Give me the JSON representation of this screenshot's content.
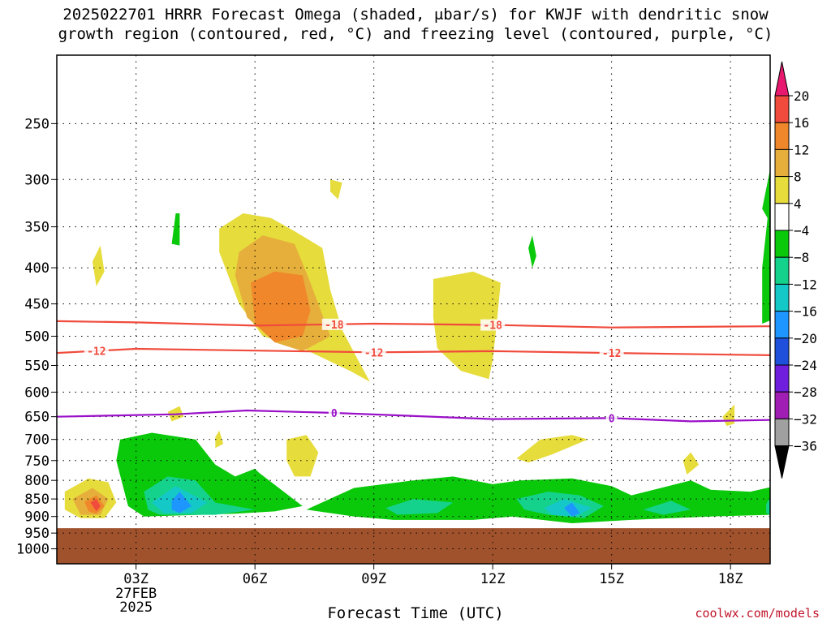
{
  "title_line1": "2025022701 HRRR Forecast Omega (shaded, μbar/s) for KWJF with dendritic snow",
  "title_line2": "growth region (contoured, red, °C) and freezing level (contoured, purple, °C)",
  "credit": "coolwx.com/models",
  "chart_data": {
    "type": "heatmap",
    "title": "2025022701 HRRR Forecast Omega (shaded, μbar/s) for KWJF with dendritic snow growth region (contoured, red, °C) and freezing level (contoured, purple, °C)",
    "xlabel": "Forecast Time (UTC)",
    "ylabel": "",
    "x_range_hours": [
      1,
      19
    ],
    "x_ticks": [
      {
        "hour": 3,
        "label": "03Z",
        "extra": [
          "27FEB",
          "2025"
        ]
      },
      {
        "hour": 6,
        "label": "06Z"
      },
      {
        "hour": 9,
        "label": "09Z"
      },
      {
        "hour": 12,
        "label": "12Z"
      },
      {
        "hour": 15,
        "label": "15Z"
      },
      {
        "hour": 18,
        "label": "18Z"
      }
    ],
    "y_ticks": [
      250,
      300,
      350,
      400,
      450,
      500,
      550,
      600,
      650,
      700,
      750,
      800,
      850,
      900,
      950,
      1000
    ],
    "y_range_hpa": [
      200,
      1050
    ],
    "ground_below_hpa": 935,
    "grid": true,
    "colorbar": {
      "levels": [
        20,
        16,
        12,
        8,
        4,
        -4,
        -8,
        -12,
        -16,
        -20,
        -24,
        -28,
        -32,
        -36
      ],
      "colors": [
        "#e8186e",
        "#f04b3c",
        "#f0872a",
        "#e6ae3a",
        "#e6dc3c",
        "#ffffff",
        "#0ac80a",
        "#14d28c",
        "#14c8c8",
        "#1e96ff",
        "#1e50dc",
        "#6e1edc",
        "#a01eb4",
        "#a0a0a0",
        "#000000"
      ]
    },
    "contours": [
      {
        "label": "-18",
        "color": "#f04b3c",
        "points": [
          [
            1,
            476
          ],
          [
            3,
            478
          ],
          [
            6,
            483
          ],
          [
            9,
            480
          ],
          [
            12,
            482
          ],
          [
            15,
            486
          ],
          [
            19,
            484
          ]
        ],
        "label_hours": [
          8,
          12
        ]
      },
      {
        "label": "-12",
        "color": "#f04b3c",
        "points": [
          [
            1,
            528
          ],
          [
            3,
            521
          ],
          [
            6,
            524
          ],
          [
            9,
            527
          ],
          [
            12,
            525
          ],
          [
            15,
            528
          ],
          [
            19,
            532
          ]
        ],
        "label_hours": [
          2,
          9,
          15
        ]
      },
      {
        "label": "0",
        "color": "#9a10c8",
        "points": [
          [
            1,
            650
          ],
          [
            4,
            645
          ],
          [
            5.8,
            637
          ],
          [
            8,
            642
          ],
          [
            12,
            655
          ],
          [
            15,
            653
          ],
          [
            17,
            660
          ],
          [
            19,
            657
          ]
        ],
        "label_hours": [
          8,
          15
        ]
      }
    ],
    "regions": [
      {
        "value": 6,
        "polygon": [
          [
            5.1,
            352
          ],
          [
            5.7,
            335
          ],
          [
            6.4,
            340
          ],
          [
            7,
            355
          ],
          [
            7.7,
            375
          ],
          [
            7.9,
            430
          ],
          [
            8.2,
            490
          ],
          [
            8.6,
            540
          ],
          [
            8.9,
            580
          ],
          [
            8.4,
            560
          ],
          [
            7.2,
            520
          ],
          [
            6.2,
            500
          ],
          [
            5.6,
            450
          ],
          [
            5.1,
            380
          ]
        ]
      },
      {
        "value": 10,
        "polygon": [
          [
            5.6,
            380
          ],
          [
            6.2,
            360
          ],
          [
            7,
            370
          ],
          [
            7.4,
            420
          ],
          [
            7.9,
            500
          ],
          [
            7.2,
            525
          ],
          [
            6.5,
            510
          ],
          [
            5.8,
            470
          ],
          [
            5.5,
            410
          ]
        ]
      },
      {
        "value": 14,
        "polygon": [
          [
            5.9,
            420
          ],
          [
            6.5,
            405
          ],
          [
            7.2,
            410
          ],
          [
            7.4,
            460
          ],
          [
            7.2,
            500
          ],
          [
            6.5,
            510
          ],
          [
            6,
            480
          ]
        ]
      },
      {
        "value": 6,
        "polygon": [
          [
            10.5,
            415
          ],
          [
            11.5,
            405
          ],
          [
            12.2,
            420
          ],
          [
            12.1,
            480
          ],
          [
            12,
            540
          ],
          [
            11.9,
            575
          ],
          [
            11.2,
            560
          ],
          [
            10.6,
            520
          ],
          [
            10.5,
            470
          ]
        ]
      },
      {
        "value": 6,
        "polygon": [
          [
            1.9,
            392
          ],
          [
            2.1,
            372
          ],
          [
            2.2,
            405
          ],
          [
            2.0,
            425
          ]
        ]
      },
      {
        "value": 6,
        "polygon": [
          [
            7.9,
            300
          ],
          [
            8.2,
            303
          ],
          [
            8.1,
            320
          ],
          [
            7.9,
            312
          ]
        ]
      },
      {
        "value": 6,
        "polygon": [
          [
            3.8,
            640
          ],
          [
            4.1,
            628
          ],
          [
            4.2,
            650
          ],
          [
            3.9,
            660
          ]
        ]
      },
      {
        "value": 6,
        "polygon": [
          [
            5.0,
            695
          ],
          [
            5.1,
            680
          ],
          [
            5.2,
            710
          ],
          [
            5.0,
            720
          ]
        ]
      },
      {
        "value": 6,
        "polygon": [
          [
            6.8,
            700
          ],
          [
            7.3,
            690
          ],
          [
            7.6,
            730
          ],
          [
            7.4,
            790
          ],
          [
            7.0,
            790
          ],
          [
            6.8,
            750
          ]
        ]
      },
      {
        "value": 6,
        "polygon": [
          [
            12.6,
            745
          ],
          [
            13.2,
            700
          ],
          [
            14.0,
            690
          ],
          [
            14.4,
            700
          ],
          [
            13.5,
            735
          ],
          [
            12.9,
            755
          ]
        ]
      },
      {
        "value": 6,
        "polygon": [
          [
            16.8,
            750
          ],
          [
            17.0,
            730
          ],
          [
            17.2,
            760
          ],
          [
            16.9,
            785
          ]
        ]
      },
      {
        "value": 6,
        "polygon": [
          [
            17.8,
            650
          ],
          [
            18.1,
            625
          ],
          [
            18.1,
            665
          ],
          [
            17.9,
            670
          ]
        ]
      },
      {
        "value": -6,
        "polygon": [
          [
            2.6,
            700
          ],
          [
            3.4,
            685
          ],
          [
            4.5,
            700
          ],
          [
            5,
            760
          ],
          [
            5.5,
            790
          ],
          [
            6.0,
            770
          ],
          [
            6.1,
            780
          ],
          [
            7.2,
            870
          ],
          [
            6.5,
            885
          ],
          [
            5.5,
            892
          ],
          [
            3.2,
            900
          ],
          [
            2.8,
            870
          ],
          [
            2.5,
            750
          ]
        ]
      },
      {
        "value": -6,
        "polygon": [
          [
            3.9,
            370
          ],
          [
            4.0,
            335
          ],
          [
            4.1,
            335
          ],
          [
            4.1,
            372
          ]
        ]
      },
      {
        "value": -6,
        "polygon": [
          [
            13.0,
            360
          ],
          [
            13.1,
            385
          ],
          [
            13.0,
            400
          ],
          [
            12.9,
            375
          ]
        ]
      },
      {
        "value": -6,
        "polygon": [
          [
            7.3,
            880
          ],
          [
            8.5,
            820
          ],
          [
            10,
            800
          ],
          [
            11,
            790
          ],
          [
            12,
            810
          ],
          [
            12.7,
            800
          ],
          [
            14,
            795
          ],
          [
            15,
            815
          ],
          [
            15.5,
            840
          ],
          [
            17,
            800
          ],
          [
            17.5,
            825
          ],
          [
            18.5,
            830
          ],
          [
            19,
            818
          ],
          [
            19,
            895
          ],
          [
            17.5,
            900
          ],
          [
            15.5,
            910
          ],
          [
            14,
            920
          ],
          [
            12.5,
            900
          ],
          [
            11.5,
            910
          ],
          [
            9.5,
            910
          ],
          [
            8.5,
            900
          ]
        ]
      },
      {
        "value": -6,
        "polygon": [
          [
            18.8,
            400
          ],
          [
            19,
            315
          ],
          [
            19,
            475
          ],
          [
            18.8,
            480
          ]
        ]
      },
      {
        "value": -6,
        "polygon": [
          [
            18.8,
            330
          ],
          [
            19,
            290
          ],
          [
            19,
            345
          ]
        ]
      },
      {
        "value": -10,
        "polygon": [
          [
            3.2,
            830
          ],
          [
            3.8,
            790
          ],
          [
            4.5,
            800
          ],
          [
            5,
            860
          ],
          [
            6.0,
            880
          ],
          [
            5,
            895
          ],
          [
            3.6,
            895
          ],
          [
            3.3,
            880
          ]
        ]
      },
      {
        "value": -10,
        "polygon": [
          [
            9.3,
            875
          ],
          [
            10,
            850
          ],
          [
            11,
            860
          ],
          [
            10.6,
            890
          ],
          [
            9.6,
            895
          ]
        ]
      },
      {
        "value": -10,
        "polygon": [
          [
            12.6,
            850
          ],
          [
            13.4,
            830
          ],
          [
            14.2,
            840
          ],
          [
            14.8,
            870
          ],
          [
            14.3,
            905
          ],
          [
            13.4,
            895
          ],
          [
            12.8,
            880
          ]
        ]
      },
      {
        "value": -10,
        "polygon": [
          [
            15.8,
            880
          ],
          [
            16.5,
            855
          ],
          [
            17,
            880
          ],
          [
            16.3,
            895
          ]
        ]
      },
      {
        "value": -10,
        "polygon": [
          [
            18.9,
            865
          ],
          [
            19,
            845
          ],
          [
            19,
            895
          ],
          [
            18.9,
            890
          ]
        ]
      },
      {
        "value": -14,
        "polygon": [
          [
            3.4,
            860
          ],
          [
            4,
            815
          ],
          [
            4.8,
            860
          ],
          [
            4.4,
            890
          ],
          [
            3.7,
            890
          ]
        ]
      },
      {
        "value": -14,
        "polygon": [
          [
            13.3,
            875
          ],
          [
            13.8,
            850
          ],
          [
            14.5,
            875
          ],
          [
            14.1,
            900
          ],
          [
            13.5,
            895
          ]
        ]
      },
      {
        "value": -18,
        "polygon": [
          [
            3.9,
            855
          ],
          [
            4.1,
            830
          ],
          [
            4.4,
            870
          ],
          [
            4.1,
            890
          ],
          [
            3.9,
            880
          ]
        ]
      },
      {
        "value": -18,
        "polygon": [
          [
            13.8,
            875
          ],
          [
            14.0,
            860
          ],
          [
            14.2,
            890
          ],
          [
            14.0,
            900
          ]
        ]
      },
      {
        "value": 6,
        "polygon": [
          [
            1.2,
            830
          ],
          [
            1.8,
            795
          ],
          [
            2.3,
            805
          ],
          [
            2.5,
            860
          ],
          [
            2.2,
            905
          ],
          [
            1.6,
            905
          ],
          [
            1.2,
            880
          ]
        ]
      },
      {
        "value": 10,
        "polygon": [
          [
            1.4,
            850
          ],
          [
            1.9,
            820
          ],
          [
            2.3,
            850
          ],
          [
            2.1,
            895
          ],
          [
            1.6,
            895
          ]
        ]
      },
      {
        "value": 14,
        "polygon": [
          [
            1.7,
            858
          ],
          [
            2.0,
            840
          ],
          [
            2.2,
            870
          ],
          [
            2.0,
            892
          ],
          [
            1.8,
            885
          ]
        ]
      },
      {
        "value": 18,
        "polygon": [
          [
            1.85,
            860
          ],
          [
            2.0,
            850
          ],
          [
            2.1,
            870
          ],
          [
            2.0,
            885
          ]
        ]
      }
    ]
  }
}
